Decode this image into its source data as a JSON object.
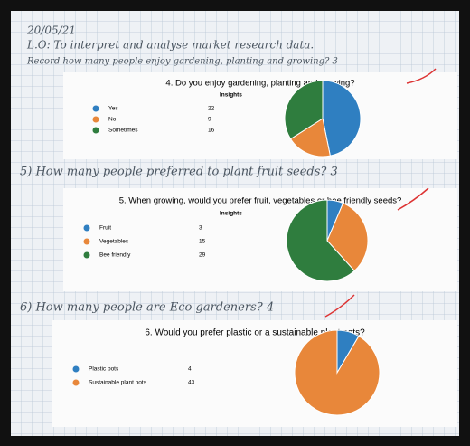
{
  "notes": [
    "20/05/21",
    "L.O: To interpret and analyse market research data.",
    "Record how many people enjoy gardening, planting and growing? 3",
    "5) How many people preferred to plant fruit seeds? 3",
    "6) How many people are Eco gardeners? 4"
  ],
  "chart_data": [
    {
      "type": "pie",
      "title": "4. Do you enjoy gardening, planting and growing?",
      "subtitle": "Insights",
      "categories": [
        "Yes",
        "No",
        "Sometimes"
      ],
      "values": [
        22,
        9,
        16
      ],
      "colors": [
        "#2f7fc1",
        "#e8873a",
        "#2f7d3e"
      ]
    },
    {
      "type": "pie",
      "title": "5. When growing, would you prefer fruit, vegetables or bee friendly seeds?",
      "subtitle": "Insights",
      "categories": [
        "Fruit",
        "Vegetables",
        "Bee friendly"
      ],
      "values": [
        3,
        15,
        29
      ],
      "colors": [
        "#2f7fc1",
        "#e8873a",
        "#2f7d3e"
      ]
    },
    {
      "type": "pie",
      "title": "6. Would you prefer plastic or a sustainable plant pots?",
      "categories": [
        "Plastic pots",
        "Sustainable plant pots"
      ],
      "values": [
        4,
        43
      ],
      "colors": [
        "#2f7fc1",
        "#e8873a"
      ]
    }
  ]
}
